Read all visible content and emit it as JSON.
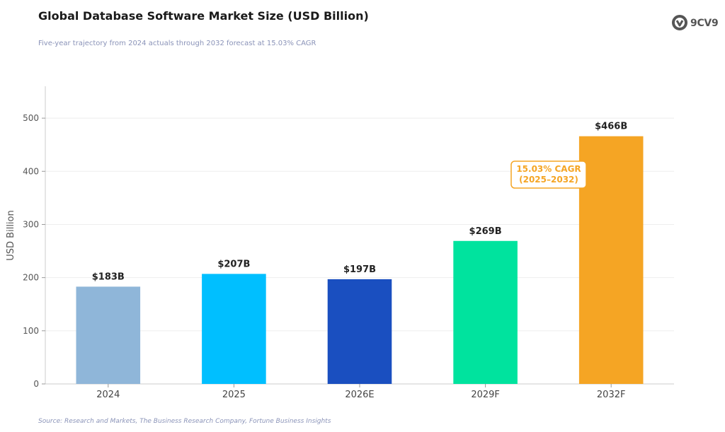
{
  "header": {
    "title": "Global Database Software Market Size (USD Billion)",
    "subtitle": "Five-year trajectory from 2024 actuals through 2032 forecast at 15.03% CAGR",
    "logo_text": "9CV9"
  },
  "footer": {
    "source": "Source: Research and Markets, The Business Research Company, Fortune Business Insights"
  },
  "chart_data": {
    "type": "bar",
    "categories": [
      "2024",
      "2025",
      "2026E",
      "2029F",
      "2032F"
    ],
    "values": [
      183,
      207,
      197,
      269,
      466
    ],
    "data_labels": [
      "$183B",
      "$207B",
      "$197B",
      "$269B",
      "$466B"
    ],
    "colors": [
      "#8fb6d9",
      "#00bfff",
      "#1a4fc0",
      "#00e39e",
      "#f5a524"
    ],
    "ylabel": "USD Billion",
    "xlabel": "",
    "ylim": [
      0,
      560
    ],
    "yticks": [
      0,
      100,
      200,
      300,
      400,
      500
    ],
    "grid": true,
    "annotation": {
      "lines": [
        "15.03% CAGR",
        "(2025–2032)"
      ],
      "color": "#f5a524"
    }
  }
}
